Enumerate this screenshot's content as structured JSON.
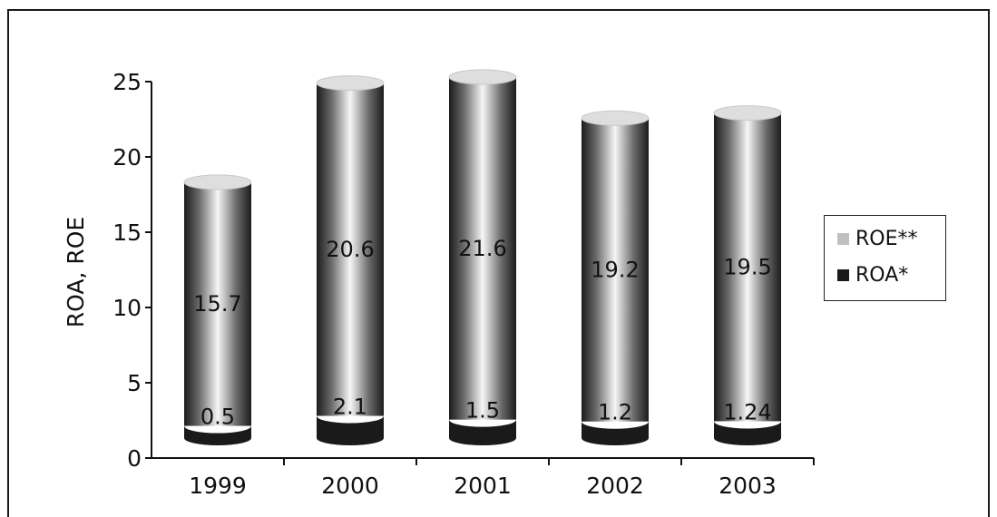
{
  "chart_data": {
    "type": "bar",
    "style": "3d-cylinder-stacked",
    "title": "",
    "xlabel": "",
    "ylabel": "ROA, ROE",
    "ylim": [
      0,
      25
    ],
    "yticks": [
      "0",
      "5",
      "10",
      "15",
      "20",
      "25"
    ],
    "categories": [
      "1999",
      "2000",
      "2001",
      "2002",
      "2003"
    ],
    "series": [
      {
        "name": "ROA*",
        "values": [
          0.5,
          2.1,
          1.5,
          1.2,
          1.24
        ],
        "labels": [
          "0.5",
          "2.1",
          "1.5",
          "1.2",
          "1.24"
        ],
        "color": "#1a1a1a"
      },
      {
        "name": "ROE**",
        "values": [
          15.7,
          20.6,
          21.6,
          19.2,
          19.5
        ],
        "labels": [
          "15.7",
          "20.6",
          "21.6",
          "19.2",
          "19.5"
        ],
        "color": "#c0c0c0"
      }
    ],
    "legend": {
      "position": "right",
      "items": [
        "ROE**",
        "ROA*"
      ]
    }
  }
}
